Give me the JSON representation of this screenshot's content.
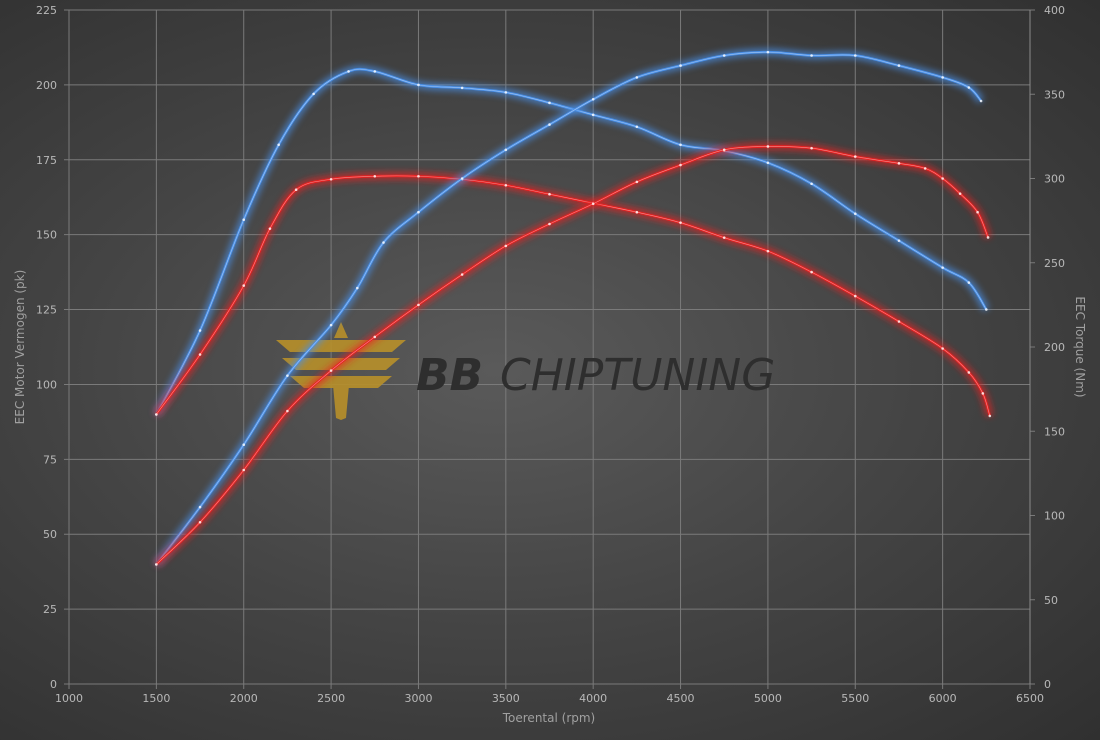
{
  "chart_data": {
    "type": "line",
    "xlabel": "Toerental (rpm)",
    "ylabel": "EEC Motor Vermogen (pk)",
    "y2label": "EEC Torque (Nm)",
    "xlim": [
      1000,
      6500
    ],
    "ylim": [
      0,
      225
    ],
    "y2lim": [
      0,
      400
    ],
    "xticks": [
      1000,
      1500,
      2000,
      2500,
      3000,
      3500,
      4000,
      4500,
      5000,
      5500,
      6000,
      6500
    ],
    "yticks": [
      0,
      25,
      50,
      75,
      100,
      125,
      150,
      175,
      200,
      225
    ],
    "y2ticks": [
      0,
      50,
      100,
      150,
      200,
      250,
      300,
      350,
      400
    ],
    "grid": true,
    "watermark": "BBCHIPTUNING",
    "series": [
      {
        "axis": "left",
        "color": "#4a90e8",
        "points": [
          [
            1500,
            90
          ],
          [
            1750,
            118
          ],
          [
            2000,
            155
          ],
          [
            2200,
            180
          ],
          [
            2400,
            197
          ],
          [
            2600,
            204.5
          ],
          [
            2750,
            204.5
          ],
          [
            3000,
            200
          ],
          [
            3250,
            199
          ],
          [
            3500,
            197.5
          ],
          [
            3750,
            194
          ],
          [
            4000,
            190
          ],
          [
            4250,
            186
          ],
          [
            4500,
            180
          ],
          [
            4750,
            178
          ],
          [
            5000,
            174
          ],
          [
            5250,
            167
          ],
          [
            5500,
            157
          ],
          [
            5750,
            148
          ],
          [
            6000,
            139
          ],
          [
            6150,
            134
          ],
          [
            6250,
            125
          ]
        ]
      },
      {
        "axis": "left",
        "color": "#e82020",
        "points": [
          [
            1500,
            90
          ],
          [
            1750,
            110
          ],
          [
            2000,
            133
          ],
          [
            2150,
            152
          ],
          [
            2300,
            165
          ],
          [
            2500,
            168.5
          ],
          [
            2750,
            169.5
          ],
          [
            3000,
            169.5
          ],
          [
            3250,
            168.5
          ],
          [
            3500,
            166.5
          ],
          [
            3750,
            163.5
          ],
          [
            4000,
            160.5
          ],
          [
            4250,
            157.5
          ],
          [
            4500,
            154
          ],
          [
            4750,
            149
          ],
          [
            5000,
            144.5
          ],
          [
            5250,
            137.5
          ],
          [
            5500,
            129.5
          ],
          [
            5750,
            121
          ],
          [
            6000,
            112
          ],
          [
            6150,
            104
          ],
          [
            6230,
            97
          ],
          [
            6270,
            89.5
          ]
        ]
      },
      {
        "axis": "right",
        "color": "#4a90e8",
        "points": [
          [
            1500,
            71
          ],
          [
            1750,
            105
          ],
          [
            2000,
            142
          ],
          [
            2250,
            183
          ],
          [
            2500,
            213
          ],
          [
            2650,
            235
          ],
          [
            2800,
            262
          ],
          [
            3000,
            280
          ],
          [
            3250,
            300
          ],
          [
            3500,
            317
          ],
          [
            3750,
            332
          ],
          [
            4000,
            347
          ],
          [
            4250,
            360
          ],
          [
            4500,
            367
          ],
          [
            4750,
            373
          ],
          [
            5000,
            375
          ],
          [
            5250,
            373
          ],
          [
            5500,
            373
          ],
          [
            5750,
            367
          ],
          [
            6000,
            360
          ],
          [
            6150,
            354
          ],
          [
            6220,
            346
          ]
        ]
      },
      {
        "axis": "right",
        "color": "#e82020",
        "points": [
          [
            1500,
            71
          ],
          [
            1750,
            96
          ],
          [
            2000,
            127
          ],
          [
            2250,
            162
          ],
          [
            2500,
            186
          ],
          [
            2750,
            206
          ],
          [
            3000,
            225
          ],
          [
            3250,
            243
          ],
          [
            3500,
            260
          ],
          [
            3750,
            273
          ],
          [
            4000,
            285
          ],
          [
            4250,
            298
          ],
          [
            4500,
            308
          ],
          [
            4750,
            317
          ],
          [
            5000,
            319
          ],
          [
            5250,
            318
          ],
          [
            5500,
            313
          ],
          [
            5750,
            309
          ],
          [
            5900,
            306
          ],
          [
            6000,
            300
          ],
          [
            6100,
            291
          ],
          [
            6200,
            280
          ],
          [
            6260,
            265
          ]
        ]
      }
    ]
  }
}
